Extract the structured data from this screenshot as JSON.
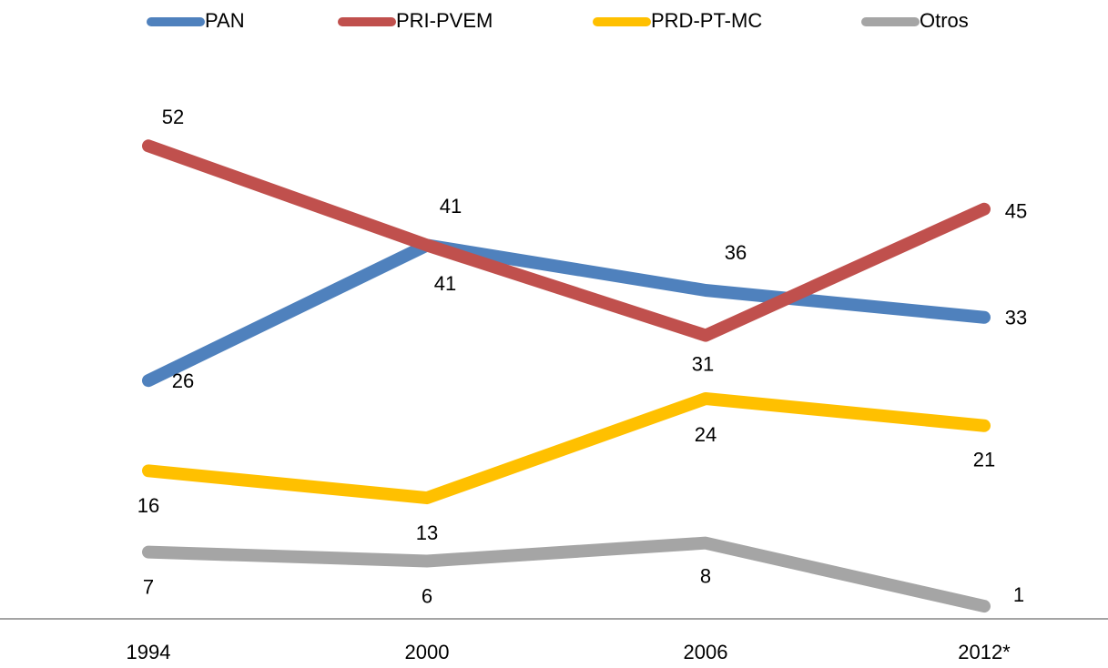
{
  "chart_data": {
    "type": "line",
    "categories": [
      "1994",
      "2000",
      "2006",
      "2012*"
    ],
    "series": [
      {
        "name": "PAN",
        "color": "#4f81bd",
        "values": [
          26,
          41,
          36,
          33
        ]
      },
      {
        "name": "PRI-PVEM",
        "color": "#c0504d",
        "values": [
          52,
          41,
          31,
          45
        ]
      },
      {
        "name": "PRD-PT-MC",
        "color": "#ffc000",
        "values": [
          16,
          13,
          24,
          21
        ]
      },
      {
        "name": "Otros",
        "color": "#a5a5a5",
        "values": [
          7,
          6,
          8,
          1
        ]
      }
    ],
    "ylim": [
      0,
      60
    ],
    "legend": "top"
  }
}
